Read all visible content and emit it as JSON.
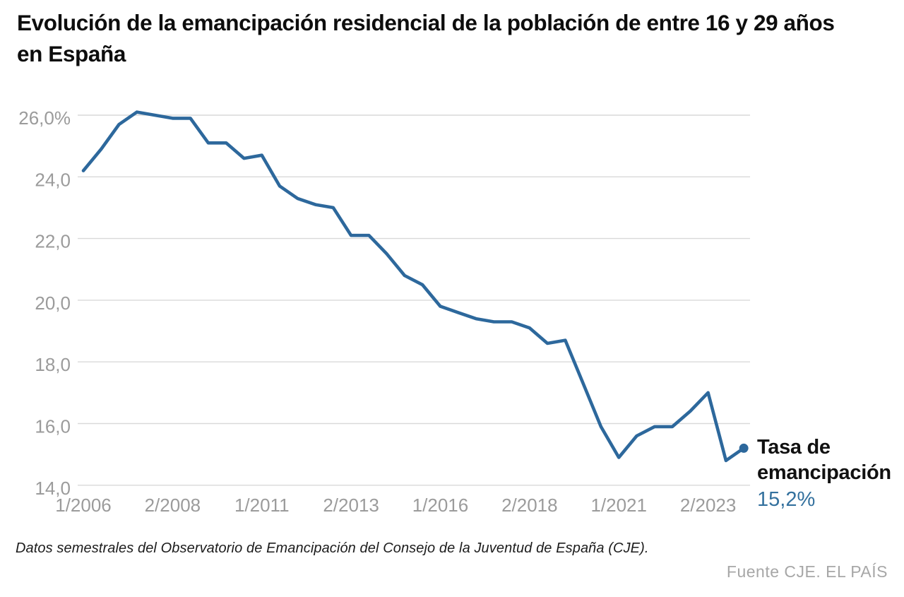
{
  "title": "Evolución de la emancipación residencial de la población de entre 16 y 29 años en España",
  "chart_data": {
    "type": "line",
    "title": "Evolución de la emancipación residencial de la población de entre 16 y 29 años en España",
    "x": [
      "1/2006",
      "2/2006",
      "1/2007",
      "2/2007",
      "1/2008",
      "2/2008",
      "1/2009",
      "2/2009",
      "1/2010",
      "2/2010",
      "1/2011",
      "2/2011",
      "1/2012",
      "2/2012",
      "1/2013",
      "2/2013",
      "1/2014",
      "2/2014",
      "1/2015",
      "2/2015",
      "1/2016",
      "2/2016",
      "1/2017",
      "2/2017",
      "1/2018",
      "2/2018",
      "1/2019",
      "2/2019",
      "1/2020",
      "2/2020",
      "1/2021",
      "2/2021",
      "1/2022",
      "2/2022",
      "1/2023",
      "2/2023",
      "1/2024",
      "2/2024"
    ],
    "series": [
      {
        "name": "Tasa de emancipación",
        "values": [
          24.2,
          24.9,
          25.7,
          26.1,
          26.0,
          25.9,
          25.9,
          25.1,
          25.1,
          24.6,
          24.7,
          23.7,
          23.3,
          23.1,
          23.0,
          22.1,
          22.1,
          21.5,
          20.8,
          20.5,
          19.8,
          19.6,
          19.4,
          19.3,
          19.3,
          19.1,
          18.6,
          18.7,
          17.3,
          15.9,
          14.9,
          15.6,
          15.9,
          15.9,
          16.4,
          17.0,
          14.8,
          15.2
        ]
      }
    ],
    "x_tick_labels": [
      "1/2006",
      "2/2008",
      "1/2011",
      "2/2013",
      "1/2016",
      "2/2018",
      "1/2021",
      "2/2023"
    ],
    "x_tick_indices": [
      0,
      5,
      10,
      15,
      20,
      25,
      30,
      35
    ],
    "y_tick_labels": [
      "26,0%",
      "24,0",
      "22,0",
      "20,0",
      "18,0",
      "16,0",
      "14,0"
    ],
    "y_tick_values": [
      26,
      24,
      22,
      20,
      18,
      16,
      14
    ],
    "ylim": [
      14,
      26.6
    ],
    "grid": "horizontal",
    "legend_position": "right-of-last-point",
    "last_value_label": "15,2%"
  },
  "annotation": {
    "label_line1": "Tasa de",
    "label_line2": "emancipación",
    "value": "15,2%"
  },
  "footer": {
    "note": "Datos semestrales del Observatorio de Emancipación del Consejo de la Juventud de España (CJE).",
    "source": "Fuente CJE. EL PAÍS"
  },
  "colors": {
    "line": "#2d689c",
    "end_dot": "#2d689c",
    "value_text": "#34719e",
    "axis_text": "#9b9b9b",
    "grid": "#d9d9d9",
    "title_text": "#0d0d0d"
  }
}
